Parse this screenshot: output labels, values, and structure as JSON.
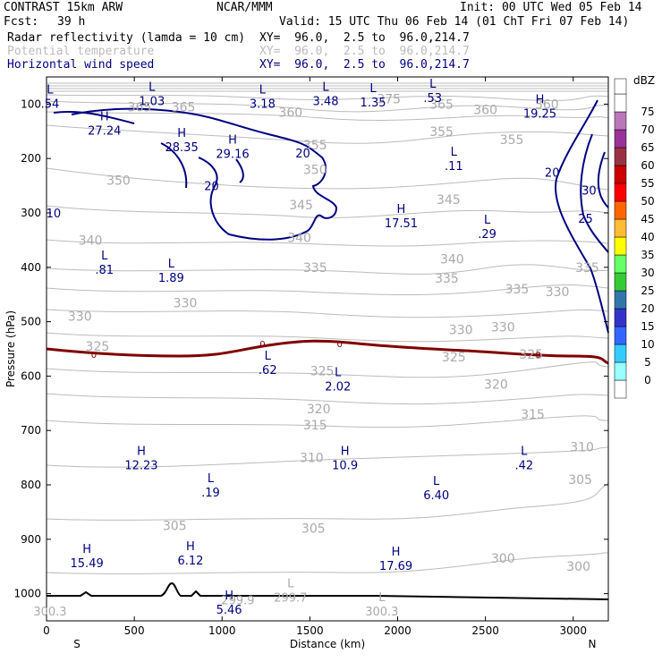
{
  "header": {
    "model": "CONTRAST 15km ARW",
    "center": "NCAR/MMM",
    "init": "Init: 00 UTC Wed 05 Feb 14",
    "fcst_label": "Fcst:",
    "fcst_value": "39 h",
    "valid": "Valid: 15 UTC Thu 06 Feb 14 (01 ChT Fri 07 Feb 14)",
    "fields": [
      {
        "name": "Radar reflectivity (lamda = 10 cm)",
        "xy": "XY=  96.0,  2.5 to  96.0,214.7",
        "color": "#000000"
      },
      {
        "name": "Potential temperature",
        "xy": "XY=  96.0,  2.5 to  96.0,214.7",
        "color": "#bbbbbb"
      },
      {
        "name": "Horizontal wind speed",
        "xy": "XY=  96.0,  2.5 to  96.0,214.7",
        "color": "#000080"
      }
    ]
  },
  "chart_data": {
    "type": "cross-section",
    "xlabel": "Distance (km)",
    "ylabel": "Pressure (hPa)",
    "x_ticks": [
      0,
      500,
      1000,
      1500,
      2000,
      2500,
      3000
    ],
    "xlim": [
      0,
      3200
    ],
    "y_ticks": [
      100,
      200,
      300,
      400,
      500,
      600,
      700,
      800,
      900,
      1000
    ],
    "ylim": [
      50,
      1050
    ],
    "left_end": "S",
    "right_end": "N",
    "colorbar": {
      "title": "dBZ",
      "levels": [
        0,
        5,
        10,
        15,
        20,
        25,
        30,
        35,
        40,
        45,
        50,
        55,
        60,
        65,
        70,
        75
      ],
      "colors": [
        "#ffffff",
        "#99ffff",
        "#33ccff",
        "#3366ff",
        "#3333cc",
        "#3377aa",
        "#33cc33",
        "#66ff66",
        "#ffff00",
        "#ffbb33",
        "#ff6600",
        "#ff0000",
        "#cc0000",
        "#993344",
        "#993399",
        "#bb77bb",
        "#ffffff"
      ]
    },
    "theta_labels": [
      {
        "v": "365",
        "x": 530,
        "p": 105
      },
      {
        "v": "365",
        "x": 780,
        "p": 105
      },
      {
        "v": "360",
        "x": 1390,
        "p": 115
      },
      {
        "v": "365",
        "x": 2250,
        "p": 100
      },
      {
        "v": "360",
        "x": 2500,
        "p": 110
      },
      {
        "v": "360",
        "x": 2850,
        "p": 100
      },
      {
        "v": "375",
        "x": 1950,
        "p": 90
      },
      {
        "v": "355",
        "x": 1530,
        "p": 175
      },
      {
        "v": "355",
        "x": 2250,
        "p": 150
      },
      {
        "v": "355",
        "x": 2650,
        "p": 165
      },
      {
        "v": "350",
        "x": 410,
        "p": 240
      },
      {
        "v": "350",
        "x": 1530,
        "p": 220
      },
      {
        "v": "345",
        "x": 1450,
        "p": 285
      },
      {
        "v": "345",
        "x": 2290,
        "p": 275
      },
      {
        "v": "340",
        "x": 250,
        "p": 350
      },
      {
        "v": "340",
        "x": 1440,
        "p": 345
      },
      {
        "v": "340",
        "x": 2310,
        "p": 385
      },
      {
        "v": "335",
        "x": 1530,
        "p": 400
      },
      {
        "v": "335",
        "x": 2280,
        "p": 420
      },
      {
        "v": "335",
        "x": 2680,
        "p": 440
      },
      {
        "v": "335",
        "x": 3080,
        "p": 400
      },
      {
        "v": "330",
        "x": 190,
        "p": 490
      },
      {
        "v": "330",
        "x": 790,
        "p": 465
      },
      {
        "v": "330",
        "x": 2360,
        "p": 515
      },
      {
        "v": "330",
        "x": 2600,
        "p": 510
      },
      {
        "v": "330",
        "x": 2910,
        "p": 445
      },
      {
        "v": "325",
        "x": 290,
        "p": 545
      },
      {
        "v": "325",
        "x": 1570,
        "p": 590
      },
      {
        "v": "325",
        "x": 2320,
        "p": 565
      },
      {
        "v": "325",
        "x": 2760,
        "p": 560
      },
      {
        "v": "320",
        "x": 1550,
        "p": 660
      },
      {
        "v": "320",
        "x": 2560,
        "p": 615
      },
      {
        "v": "315",
        "x": 1530,
        "p": 690
      },
      {
        "v": "315",
        "x": 2770,
        "p": 670
      },
      {
        "v": "310",
        "x": 1510,
        "p": 750
      },
      {
        "v": "310",
        "x": 3050,
        "p": 730
      },
      {
        "v": "305",
        "x": 730,
        "p": 875
      },
      {
        "v": "305",
        "x": 1520,
        "p": 880
      },
      {
        "v": "305",
        "x": 3040,
        "p": 790
      },
      {
        "v": "300",
        "x": 2600,
        "p": 935
      },
      {
        "v": "300",
        "x": 3030,
        "p": 950
      }
    ],
    "extrema": [
      {
        "t": "L",
        "v": ".54",
        "x": 20,
        "p": 90
      },
      {
        "t": "L",
        "v": "1.03",
        "x": 600,
        "p": 85
      },
      {
        "t": "L",
        "v": "3.18",
        "x": 1230,
        "p": 90
      },
      {
        "t": "L",
        "v": "3.48",
        "x": 1590,
        "p": 85
      },
      {
        "t": "L",
        "v": "1.35",
        "x": 1860,
        "p": 88
      },
      {
        "t": "L",
        "v": ".53",
        "x": 2200,
        "p": 80
      },
      {
        "t": "H",
        "v": "19.25",
        "x": 2810,
        "p": 108
      },
      {
        "t": "H",
        "v": "27.24",
        "x": 330,
        "p": 140
      },
      {
        "t": "H",
        "v": "28.35",
        "x": 770,
        "p": 170
      },
      {
        "t": "H",
        "v": "29.16",
        "x": 1060,
        "p": 182
      },
      {
        "t": "L",
        "v": ".11",
        "x": 2320,
        "p": 205
      },
      {
        "t": "H",
        "v": "17.51",
        "x": 2020,
        "p": 310
      },
      {
        "t": "L",
        "v": ".29",
        "x": 2510,
        "p": 330
      },
      {
        "t": "L",
        "v": ".81",
        "x": 330,
        "p": 395
      },
      {
        "t": "L",
        "v": "1.89",
        "x": 710,
        "p": 410
      },
      {
        "t": "L",
        "v": ".62",
        "x": 1260,
        "p": 580
      },
      {
        "t": "L",
        "v": "2.02",
        "x": 1660,
        "p": 610
      },
      {
        "t": "H",
        "v": "12.23",
        "x": 540,
        "p": 755
      },
      {
        "t": "H",
        "v": "10.9",
        "x": 1700,
        "p": 755
      },
      {
        "t": "L",
        "v": ".42",
        "x": 2720,
        "p": 755
      },
      {
        "t": "L",
        "v": ".19",
        "x": 935,
        "p": 805
      },
      {
        "t": "L",
        "v": "6.40",
        "x": 2220,
        "p": 810
      },
      {
        "t": "H",
        "v": "15.49",
        "x": 230,
        "p": 935
      },
      {
        "t": "H",
        "v": "6.12",
        "x": 820,
        "p": 930
      },
      {
        "t": "H",
        "v": "17.69",
        "x": 1990,
        "p": 940
      },
      {
        "t": "H",
        "v": "5.46",
        "x": 1040,
        "p": 1020
      }
    ],
    "extrema_gray": [
      {
        "t": "",
        "v": "299.9",
        "x": 1090,
        "p": 1010
      },
      {
        "t": "L",
        "v": "299.7",
        "x": 1390,
        "p": 1005
      },
      {
        "t": "L",
        "v": "300.3",
        "x": 1910,
        "p": 1030
      },
      {
        "t": "",
        "v": "300.3",
        "x": 20,
        "p": 1030
      }
    ],
    "wind_labels": [
      {
        "v": "20",
        "x": 1460,
        "p": 190
      },
      {
        "v": "20",
        "x": 940,
        "p": 250
      },
      {
        "v": "10",
        "x": 40,
        "p": 300
      },
      {
        "v": "20",
        "x": 2880,
        "p": 225
      },
      {
        "v": "30",
        "x": 3090,
        "p": 258
      },
      {
        "v": "25",
        "x": 3070,
        "p": 310
      }
    ],
    "freezing_labels": [
      {
        "v": "0",
        "x": 270,
        "p": 560
      },
      {
        "v": "0",
        "x": 1230,
        "p": 540
      },
      {
        "v": "0",
        "x": 1670,
        "p": 540
      },
      {
        "v": "0",
        "x": 2800,
        "p": 560
      }
    ]
  }
}
